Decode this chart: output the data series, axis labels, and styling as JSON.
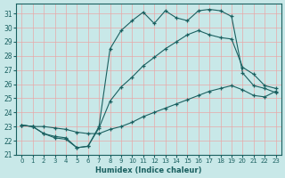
{
  "xlabel": "Humidex (Indice chaleur)",
  "bg_color": "#c8e8e8",
  "grid_color": "#e8a8a8",
  "line_color": "#1a6060",
  "xlim": [
    -0.5,
    23.5
  ],
  "ylim": [
    21,
    31.7
  ],
  "yticks": [
    21,
    22,
    23,
    24,
    25,
    26,
    27,
    28,
    29,
    30,
    31
  ],
  "xticks": [
    0,
    1,
    2,
    3,
    4,
    5,
    6,
    7,
    8,
    9,
    10,
    11,
    12,
    13,
    14,
    15,
    16,
    17,
    18,
    19,
    20,
    21,
    22,
    23
  ],
  "line1_x": [
    0,
    1,
    2,
    3,
    4,
    5,
    6,
    7,
    8,
    9,
    10,
    11,
    12,
    13,
    14,
    15,
    16,
    17,
    18,
    19,
    20,
    21,
    22,
    23
  ],
  "line1_y": [
    23.1,
    23.0,
    22.5,
    22.3,
    22.2,
    21.5,
    21.6,
    23.0,
    28.5,
    29.8,
    30.5,
    31.1,
    30.3,
    31.2,
    30.7,
    30.5,
    31.2,
    31.3,
    31.2,
    30.8,
    26.8,
    25.9,
    25.7,
    25.4
  ],
  "line2_x": [
    0,
    1,
    2,
    3,
    4,
    5,
    6,
    7,
    8,
    9,
    10,
    11,
    12,
    13,
    14,
    15,
    16,
    17,
    18,
    19,
    20,
    21,
    22,
    23
  ],
  "line2_y": [
    23.1,
    23.0,
    22.5,
    22.2,
    22.1,
    21.5,
    21.6,
    22.9,
    24.8,
    25.8,
    26.5,
    27.3,
    27.9,
    28.5,
    29.0,
    29.5,
    29.8,
    29.5,
    29.3,
    29.2,
    27.2,
    26.7,
    25.9,
    25.7
  ],
  "line3_x": [
    0,
    1,
    2,
    3,
    4,
    5,
    6,
    7,
    8,
    9,
    10,
    11,
    12,
    13,
    14,
    15,
    16,
    17,
    18,
    19,
    20,
    21,
    22,
    23
  ],
  "line3_y": [
    23.1,
    23.0,
    23.0,
    22.9,
    22.8,
    22.6,
    22.5,
    22.5,
    22.8,
    23.0,
    23.3,
    23.7,
    24.0,
    24.3,
    24.6,
    24.9,
    25.2,
    25.5,
    25.7,
    25.9,
    25.6,
    25.2,
    25.1,
    25.5
  ]
}
